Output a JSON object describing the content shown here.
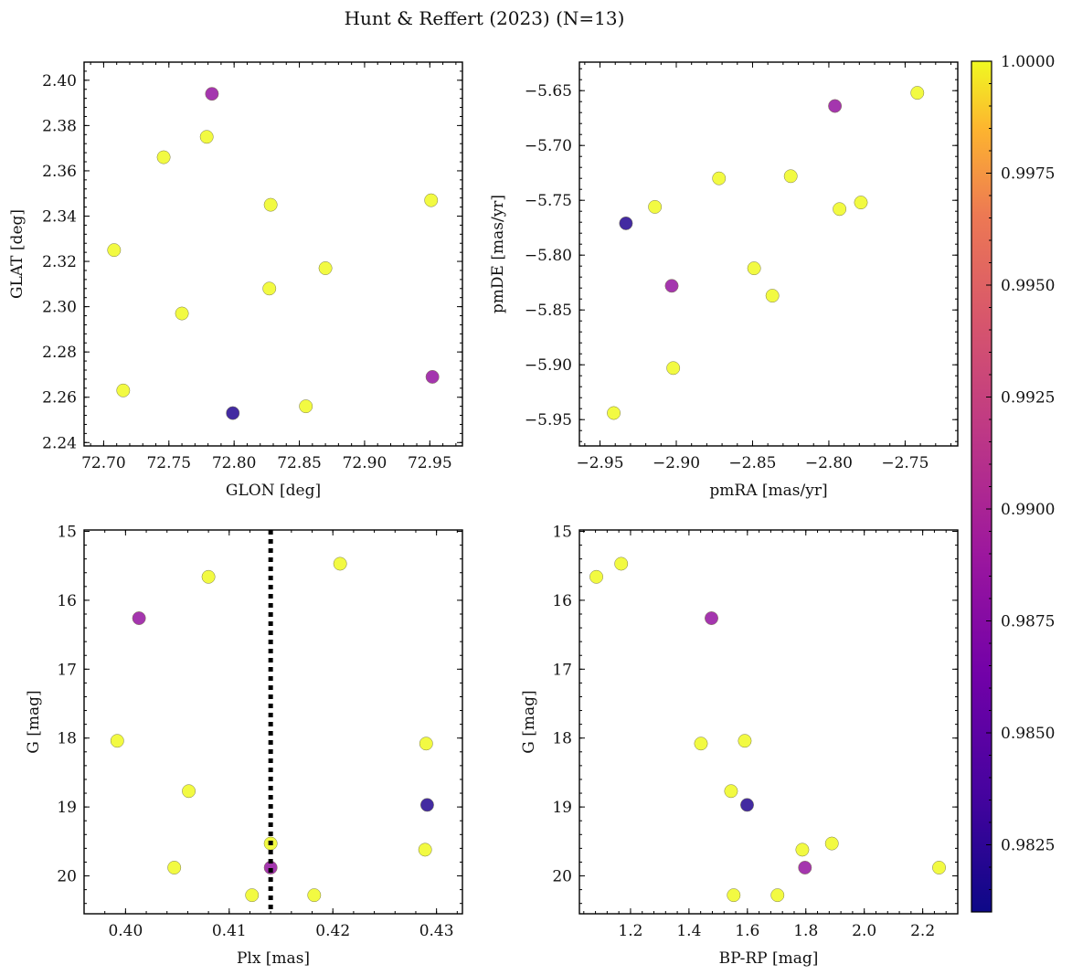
{
  "figure": {
    "title": "Hunt & Reffert (2023) (N=13)"
  },
  "chart_data": [
    {
      "type": "scatter",
      "xlabel": "GLON [deg]",
      "ylabel": "GLAT [deg]",
      "xlim": [
        72.685,
        72.975
      ],
      "ylim": [
        2.2385,
        2.408
      ],
      "xticks": [
        72.7,
        72.75,
        72.8,
        72.85,
        72.9,
        72.95
      ],
      "xtick_labels": [
        "72.70",
        "72.75",
        "72.80",
        "72.85",
        "72.90",
        "72.95"
      ],
      "yticks": [
        2.24,
        2.26,
        2.28,
        2.3,
        2.32,
        2.34,
        2.36,
        2.38,
        2.4
      ],
      "ytick_labels": [
        "2.24",
        "2.26",
        "2.28",
        "2.30",
        "2.32",
        "2.34",
        "2.36",
        "2.38",
        "2.40"
      ],
      "y_inverted": false,
      "points": [
        {
          "x": 72.783,
          "y": 2.394,
          "c": 0.9885
        },
        {
          "x": 72.779,
          "y": 2.375,
          "c": 1.0
        },
        {
          "x": 72.746,
          "y": 2.366,
          "c": 1.0
        },
        {
          "x": 72.828,
          "y": 2.345,
          "c": 1.0
        },
        {
          "x": 72.951,
          "y": 2.347,
          "c": 1.0
        },
        {
          "x": 72.708,
          "y": 2.325,
          "c": 1.0
        },
        {
          "x": 72.87,
          "y": 2.317,
          "c": 1.0
        },
        {
          "x": 72.827,
          "y": 2.308,
          "c": 1.0
        },
        {
          "x": 72.76,
          "y": 2.297,
          "c": 1.0
        },
        {
          "x": 72.952,
          "y": 2.269,
          "c": 0.9885
        },
        {
          "x": 72.715,
          "y": 2.263,
          "c": 1.0
        },
        {
          "x": 72.855,
          "y": 2.256,
          "c": 1.0
        },
        {
          "x": 72.799,
          "y": 2.253,
          "c": 0.982
        }
      ]
    },
    {
      "type": "scatter",
      "xlabel": "pmRA [mas/yr]",
      "ylabel": "pmDE [mas/yr]",
      "xlim": [
        -2.9635,
        -2.7155
      ],
      "ylim": [
        -5.974,
        -5.624
      ],
      "xticks": [
        -2.95,
        -2.9,
        -2.85,
        -2.8,
        -2.75
      ],
      "xtick_labels": [
        "−2.95",
        "−2.90",
        "−2.85",
        "−2.80",
        "−2.75"
      ],
      "yticks": [
        -5.95,
        -5.9,
        -5.85,
        -5.8,
        -5.75,
        -5.7,
        -5.65
      ],
      "ytick_labels": [
        "−5.95",
        "−5.90",
        "−5.85",
        "−5.80",
        "−5.75",
        "−5.70",
        "−5.65"
      ],
      "y_inverted": false,
      "points": [
        {
          "x": -2.742,
          "y": -5.652,
          "c": 1.0
        },
        {
          "x": -2.796,
          "y": -5.664,
          "c": 0.9885
        },
        {
          "x": -2.872,
          "y": -5.73,
          "c": 1.0
        },
        {
          "x": -2.825,
          "y": -5.728,
          "c": 1.0
        },
        {
          "x": -2.914,
          "y": -5.756,
          "c": 1.0
        },
        {
          "x": -2.793,
          "y": -5.758,
          "c": 1.0
        },
        {
          "x": -2.779,
          "y": -5.752,
          "c": 1.0
        },
        {
          "x": -2.933,
          "y": -5.771,
          "c": 0.982
        },
        {
          "x": -2.849,
          "y": -5.812,
          "c": 1.0
        },
        {
          "x": -2.903,
          "y": -5.828,
          "c": 0.9885
        },
        {
          "x": -2.837,
          "y": -5.837,
          "c": 1.0
        },
        {
          "x": -2.902,
          "y": -5.903,
          "c": 1.0
        },
        {
          "x": -2.941,
          "y": -5.944,
          "c": 1.0
        }
      ]
    },
    {
      "type": "scatter",
      "xlabel": "Plx [mas]",
      "ylabel": "G [mag]",
      "xlim": [
        0.396,
        0.4325
      ],
      "ylim": [
        20.55,
        14.98
      ],
      "xticks": [
        0.4,
        0.41,
        0.42,
        0.43
      ],
      "xtick_labels": [
        "0.40",
        "0.41",
        "0.42",
        "0.43"
      ],
      "yticks": [
        15,
        16,
        17,
        18,
        19,
        20
      ],
      "ytick_labels": [
        "15",
        "16",
        "17",
        "18",
        "19",
        "20"
      ],
      "y_inverted": true,
      "vline": {
        "x": 0.414,
        "style": "dotted"
      },
      "points": [
        {
          "x": 0.4207,
          "y": 15.47,
          "c": 1.0
        },
        {
          "x": 0.408,
          "y": 15.66,
          "c": 1.0
        },
        {
          "x": 0.4013,
          "y": 16.26,
          "c": 0.9885
        },
        {
          "x": 0.3992,
          "y": 18.04,
          "c": 1.0
        },
        {
          "x": 0.429,
          "y": 18.08,
          "c": 1.0
        },
        {
          "x": 0.4061,
          "y": 18.77,
          "c": 1.0
        },
        {
          "x": 0.4291,
          "y": 18.97,
          "c": 0.982
        },
        {
          "x": 0.414,
          "y": 19.53,
          "c": 1.0
        },
        {
          "x": 0.4289,
          "y": 19.62,
          "c": 1.0
        },
        {
          "x": 0.4047,
          "y": 19.88,
          "c": 1.0
        },
        {
          "x": 0.414,
          "y": 19.88,
          "c": 0.9885
        },
        {
          "x": 0.4122,
          "y": 20.28,
          "c": 1.0
        },
        {
          "x": 0.4182,
          "y": 20.28,
          "c": 1.0
        }
      ]
    },
    {
      "type": "scatter",
      "xlabel": "BP-RP [mag]",
      "ylabel": "G [mag]",
      "xlim": [
        1.025,
        2.32
      ],
      "ylim": [
        20.55,
        14.98
      ],
      "xticks": [
        1.2,
        1.4,
        1.6,
        1.8,
        2.0,
        2.2
      ],
      "xtick_labels": [
        "1.2",
        "1.4",
        "1.6",
        "1.8",
        "2.0",
        "2.2"
      ],
      "yticks": [
        15,
        16,
        17,
        18,
        19,
        20
      ],
      "ytick_labels": [
        "15",
        "16",
        "17",
        "18",
        "19",
        "20"
      ],
      "y_inverted": true,
      "points": [
        {
          "x": 1.168,
          "y": 15.47,
          "c": 1.0
        },
        {
          "x": 1.083,
          "y": 15.66,
          "c": 1.0
        },
        {
          "x": 1.477,
          "y": 16.26,
          "c": 0.9885
        },
        {
          "x": 1.591,
          "y": 18.04,
          "c": 1.0
        },
        {
          "x": 1.441,
          "y": 18.08,
          "c": 1.0
        },
        {
          "x": 1.544,
          "y": 18.77,
          "c": 1.0
        },
        {
          "x": 1.599,
          "y": 18.97,
          "c": 0.982
        },
        {
          "x": 1.889,
          "y": 19.53,
          "c": 1.0
        },
        {
          "x": 1.788,
          "y": 19.62,
          "c": 1.0
        },
        {
          "x": 2.256,
          "y": 19.88,
          "c": 1.0
        },
        {
          "x": 1.797,
          "y": 19.88,
          "c": 0.9885
        },
        {
          "x": 1.553,
          "y": 20.28,
          "c": 1.0
        },
        {
          "x": 1.703,
          "y": 20.28,
          "c": 1.0
        }
      ]
    }
  ],
  "colorbar": {
    "cmap": "plasma",
    "vmin": 0.981,
    "vmax": 1.0,
    "ticks": [
      0.9825,
      0.985,
      0.9875,
      0.99,
      0.9925,
      0.995,
      0.9975,
      1.0
    ],
    "tick_labels": [
      "0.9825",
      "0.9850",
      "0.9875",
      "0.9900",
      "0.9925",
      "0.9950",
      "0.9975",
      "1.0000"
    ]
  }
}
